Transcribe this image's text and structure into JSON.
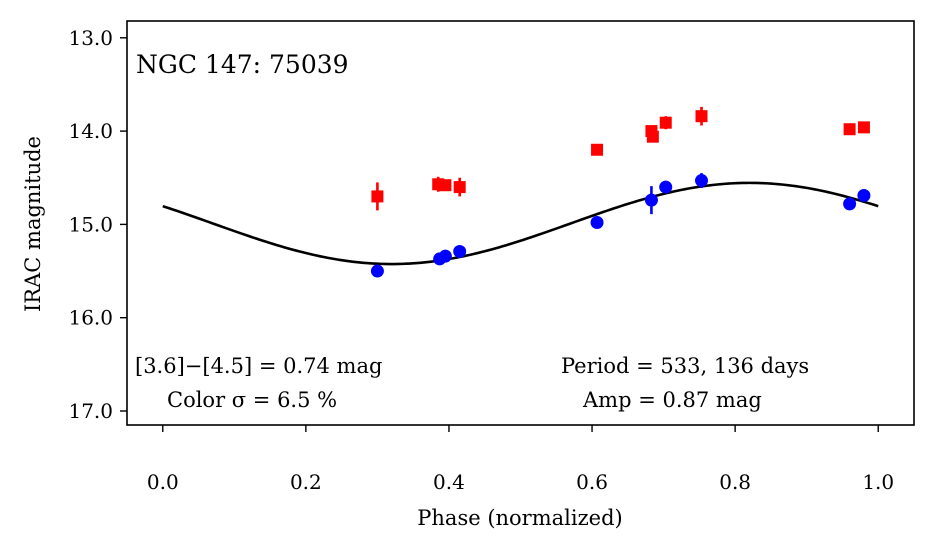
{
  "chart_data": {
    "type": "scatter",
    "title": "NGC 147: 75039",
    "xlabel": "Phase (normalized)",
    "ylabel": "IRAC magnitude",
    "xlim": [
      -0.05,
      1.05
    ],
    "ylim": [
      17.15,
      12.82
    ],
    "y_inverted": true,
    "x_ticks": [
      0.0,
      0.2,
      0.4,
      0.6,
      0.8,
      1.0
    ],
    "x_tick_labels": [
      "0.0",
      "0.2",
      "0.4",
      "0.6",
      "0.8",
      "1.0"
    ],
    "y_ticks": [
      13.0,
      14.0,
      15.0,
      16.0,
      17.0
    ],
    "y_tick_labels": [
      "13.0",
      "14.0",
      "15.0",
      "16.0",
      "17.0"
    ],
    "grid": false,
    "series": [
      {
        "color": "#ff0000",
        "marker": "square",
        "points": [
          {
            "x": 0.3,
            "y": 14.7,
            "err": 0.15
          },
          {
            "x": 0.385,
            "y": 14.57,
            "err": 0.08
          },
          {
            "x": 0.395,
            "y": 14.58,
            "err": 0.06
          },
          {
            "x": 0.415,
            "y": 14.6,
            "err": 0.1
          },
          {
            "x": 0.607,
            "y": 14.2,
            "err": 0.04
          },
          {
            "x": 0.683,
            "y": 14.0,
            "err": 0.06
          },
          {
            "x": 0.685,
            "y": 14.06,
            "err": 0.05
          },
          {
            "x": 0.703,
            "y": 13.91,
            "err": 0.07
          },
          {
            "x": 0.753,
            "y": 13.84,
            "err": 0.1
          },
          {
            "x": 0.96,
            "y": 13.98,
            "err": 0.04
          },
          {
            "x": 0.98,
            "y": 13.96,
            "err": 0.04
          }
        ]
      },
      {
        "color": "#0000ff",
        "marker": "circle",
        "points": [
          {
            "x": 0.3,
            "y": 15.5,
            "err": 0.05
          },
          {
            "x": 0.387,
            "y": 15.37,
            "err": 0.03
          },
          {
            "x": 0.395,
            "y": 15.34,
            "err": 0.03
          },
          {
            "x": 0.415,
            "y": 15.29,
            "err": 0.06
          },
          {
            "x": 0.607,
            "y": 14.98,
            "err": 0.03
          },
          {
            "x": 0.683,
            "y": 14.74,
            "err": 0.15
          },
          {
            "x": 0.703,
            "y": 14.6,
            "err": 0.05
          },
          {
            "x": 0.753,
            "y": 14.53,
            "err": 0.08
          },
          {
            "x": 0.96,
            "y": 14.78,
            "err": 0.03
          },
          {
            "x": 0.98,
            "y": 14.69,
            "err": 0.03
          }
        ]
      }
    ],
    "fit_curve": {
      "color": "#000000",
      "type": "sinusoid",
      "mean": 14.99,
      "amplitude": 0.435,
      "phase_of_max_brightness": 0.82,
      "x_range": [
        0.0,
        1.0
      ]
    },
    "annotations": {
      "title": "NGC 147: 75039",
      "color_index": "[3.6]−[4.5] = 0.74 mag",
      "color_sigma": "Color σ = 6.5 %",
      "period": "Period = 533, 136 days",
      "amplitude": "Amp = 0.87 mag"
    }
  }
}
